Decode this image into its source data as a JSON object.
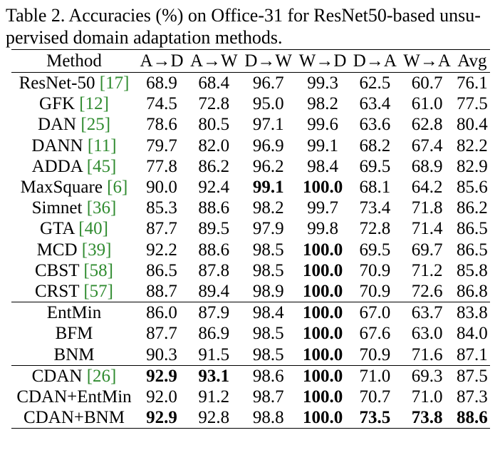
{
  "caption": {
    "line1": "Table 2. Accuracies (%) on Office-31 for ResNet50-based unsu-",
    "line2": "pervised domain adaptation methods."
  },
  "table": {
    "headers": [
      "Method",
      "A→D",
      "A→W",
      "D→W",
      "W→D",
      "D→A",
      "W→A",
      "Avg"
    ],
    "groups": [
      [
        {
          "name": "ResNet-50",
          "cite": "[17]",
          "values": [
            "68.9",
            "68.4",
            "96.7",
            "99.3",
            "62.5",
            "60.7",
            "76.1"
          ],
          "bold": []
        },
        {
          "name": "GFK",
          "cite": "[12]",
          "values": [
            "74.5",
            "72.8",
            "95.0",
            "98.2",
            "63.4",
            "61.0",
            "77.5"
          ],
          "bold": []
        },
        {
          "name": "DAN",
          "cite": "[25]",
          "values": [
            "78.6",
            "80.5",
            "97.1",
            "99.6",
            "63.6",
            "62.8",
            "80.4"
          ],
          "bold": []
        },
        {
          "name": "DANN",
          "cite": "[11]",
          "values": [
            "79.7",
            "82.0",
            "96.9",
            "99.1",
            "68.2",
            "67.4",
            "82.2"
          ],
          "bold": []
        },
        {
          "name": "ADDA",
          "cite": "[45]",
          "values": [
            "77.8",
            "86.2",
            "96.2",
            "98.4",
            "69.5",
            "68.9",
            "82.9"
          ],
          "bold": []
        },
        {
          "name": "MaxSquare",
          "cite": "[6]",
          "values": [
            "90.0",
            "92.4",
            "99.1",
            "100.0",
            "68.1",
            "64.2",
            "85.6"
          ],
          "bold": [
            2,
            3
          ]
        },
        {
          "name": "Simnet",
          "cite": "[36]",
          "values": [
            "85.3",
            "88.6",
            "98.2",
            "99.7",
            "73.4",
            "71.8",
            "86.2"
          ],
          "bold": []
        },
        {
          "name": "GTA",
          "cite": "[40]",
          "values": [
            "87.7",
            "89.5",
            "97.9",
            "99.8",
            "72.8",
            "71.4",
            "86.5"
          ],
          "bold": []
        },
        {
          "name": "MCD",
          "cite": "[39]",
          "values": [
            "92.2",
            "88.6",
            "98.5",
            "100.0",
            "69.5",
            "69.7",
            "86.5"
          ],
          "bold": [
            3
          ]
        },
        {
          "name": "CBST",
          "cite": "[58]",
          "values": [
            "86.5",
            "87.8",
            "98.5",
            "100.0",
            "70.9",
            "71.2",
            "85.8"
          ],
          "bold": [
            3
          ]
        },
        {
          "name": "CRST",
          "cite": "[57]",
          "values": [
            "88.7",
            "89.4",
            "98.9",
            "100.0",
            "70.9",
            "72.6",
            "86.8"
          ],
          "bold": [
            3
          ]
        }
      ],
      [
        {
          "name": "EntMin",
          "cite": "",
          "values": [
            "86.0",
            "87.9",
            "98.4",
            "100.0",
            "67.0",
            "63.7",
            "83.8"
          ],
          "bold": [
            3
          ]
        },
        {
          "name": "BFM",
          "cite": "",
          "values": [
            "87.7",
            "86.9",
            "98.5",
            "100.0",
            "67.6",
            "63.0",
            "84.0"
          ],
          "bold": [
            3
          ]
        },
        {
          "name": "BNM",
          "cite": "",
          "values": [
            "90.3",
            "91.5",
            "98.5",
            "100.0",
            "70.9",
            "71.6",
            "87.1"
          ],
          "bold": [
            3
          ]
        }
      ],
      [
        {
          "name": "CDAN",
          "cite": "[26]",
          "values": [
            "92.9",
            "93.1",
            "98.6",
            "100.0",
            "71.0",
            "69.3",
            "87.5"
          ],
          "bold": [
            0,
            1,
            3
          ]
        },
        {
          "name": "CDAN+EntMin",
          "cite": "",
          "values": [
            "92.0",
            "91.2",
            "98.7",
            "100.0",
            "70.7",
            "71.0",
            "87.3"
          ],
          "bold": [
            3
          ]
        },
        {
          "name": "CDAN+BNM",
          "cite": "",
          "values": [
            "92.9",
            "92.8",
            "98.8",
            "100.0",
            "73.5",
            "73.8",
            "88.6"
          ],
          "bold": [
            0,
            3,
            4,
            5,
            6
          ]
        }
      ]
    ]
  }
}
